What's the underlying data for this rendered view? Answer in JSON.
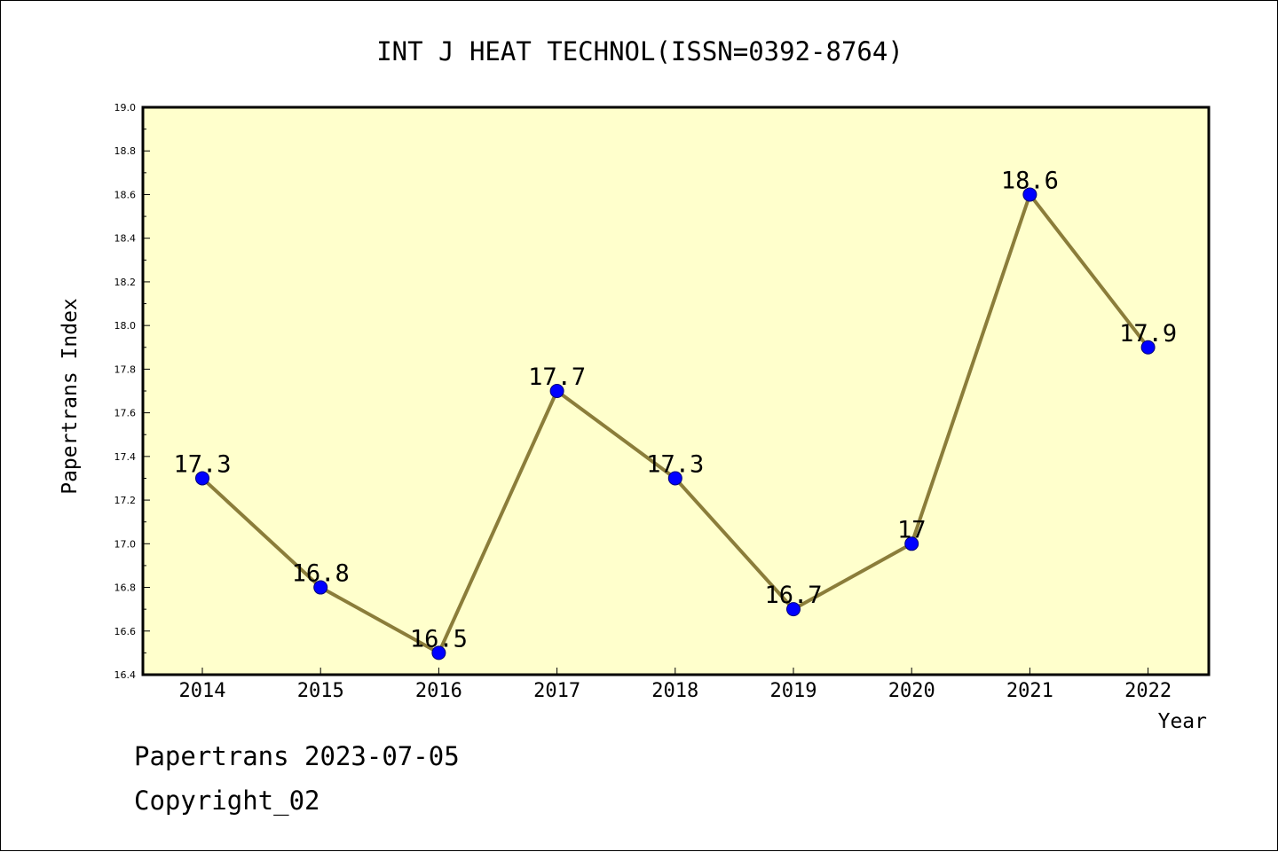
{
  "chart_data": {
    "type": "line",
    "title": "INT J HEAT TECHNOL(ISSN=0392-8764)",
    "xlabel": "Year",
    "ylabel": "Papertrans Index",
    "categories": [
      "2014",
      "2015",
      "2016",
      "2017",
      "2018",
      "2019",
      "2020",
      "2021",
      "2022"
    ],
    "series": [
      {
        "values": [
          17.3,
          16.8,
          16.5,
          17.7,
          17.3,
          16.7,
          17.0,
          18.6,
          17.9
        ],
        "labels": [
          "17.3",
          "16.8",
          "16.5",
          "17.7",
          "17.3",
          "16.7",
          "17",
          "18.6",
          "17.9"
        ]
      }
    ],
    "ylim": [
      16.4,
      19.0
    ],
    "yticks": [
      "16.4",
      "16.6",
      "16.8",
      "17.0",
      "17.2",
      "17.4",
      "17.6",
      "17.8",
      "18.0",
      "18.2",
      "18.4",
      "18.6",
      "18.8",
      "19.0"
    ],
    "grid": false,
    "legend": "none",
    "colors": {
      "plot_background": "#ffffcc",
      "line": "#8b7d3a",
      "marker": "#0000ff",
      "marker_edge": "#00007a"
    }
  },
  "footer": {
    "line1": "Papertrans 2023-07-05",
    "line2": "Copyright_02"
  }
}
